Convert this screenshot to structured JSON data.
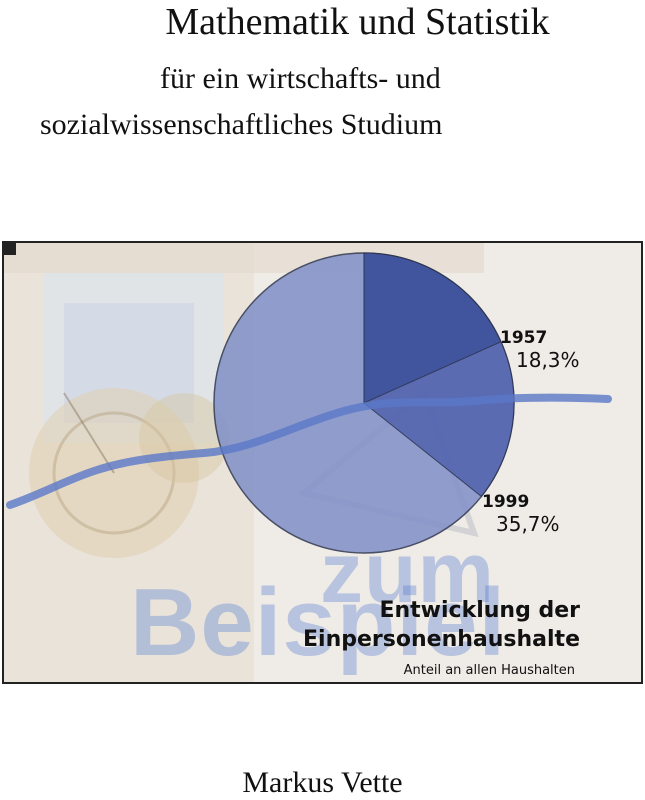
{
  "book": {
    "title": "Mathematik und Statistik",
    "subtitle_line1": "für ein wirtschafts- und",
    "subtitle_line2": "sozialwissenschaftliches Studium",
    "author": "Markus Vette"
  },
  "cover_image": {
    "watermark_line1": "zum",
    "watermark_line2": "Beispiel",
    "caption_line1": "Entwicklung der",
    "caption_line2": "Einpersonenhaushalte",
    "caption_line3": "Anteil an allen Haushalten",
    "colors": {
      "pie_fill": "#8090c8",
      "slice_dark": "#3f529c",
      "slice_mid": "#5566b0",
      "trend_line": "#5a78c8",
      "watermark": "#6f8fd8"
    }
  },
  "chart_data": {
    "type": "pie",
    "categories": [
      "1957",
      "1999"
    ],
    "values": [
      18.3,
      35.7
    ],
    "labels": [
      "18,3%",
      "35,7%"
    ],
    "unit": "%",
    "title": "Entwicklung der Einpersonenhaushalte",
    "subtitle": "Anteil an allen Haushalten"
  }
}
